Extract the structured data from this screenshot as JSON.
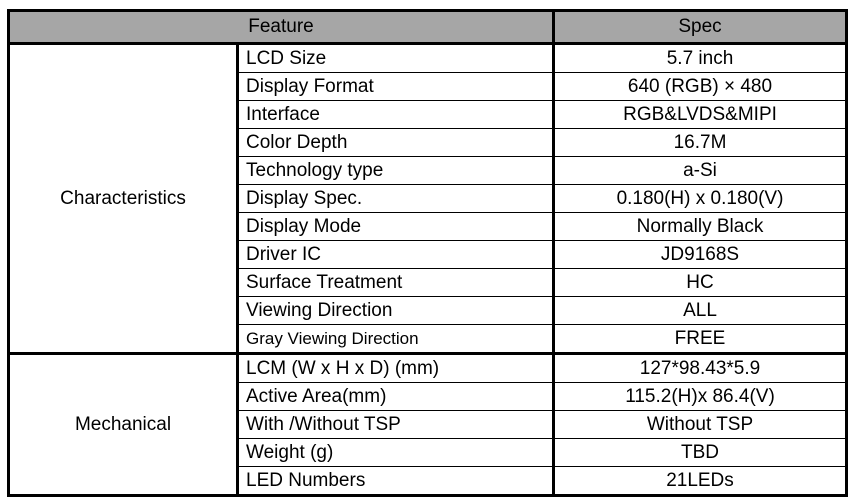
{
  "headers": {
    "feature": "Feature",
    "spec": "Spec"
  },
  "groups": [
    {
      "name": "Characteristics",
      "rows": [
        [
          "LCD Size",
          "5.7 inch"
        ],
        [
          "Display Format",
          "640 (RGB) × 480"
        ],
        [
          "Interface",
          "RGB&LVDS&MIPI"
        ],
        [
          "Color Depth",
          "16.7M"
        ],
        [
          "Technology type",
          "a-Si"
        ],
        [
          "Display Spec.",
          "0.180(H) x 0.180(V)"
        ],
        [
          "Display Mode",
          "Normally Black"
        ],
        [
          "Driver IC",
          "JD9168S"
        ],
        [
          "Surface Treatment",
          "HC"
        ],
        [
          "Viewing Direction",
          "ALL"
        ],
        [
          "Gray Viewing Direction",
          "FREE"
        ]
      ]
    },
    {
      "name": "Mechanical",
      "rows": [
        [
          "LCM (W x H x D) (mm)",
          "127*98.43*5.9"
        ],
        [
          "Active Area(mm)",
          "115.2(H)x 86.4(V)"
        ],
        [
          "With /Without TSP",
          "Without TSP"
        ],
        [
          "Weight (g)",
          "TBD"
        ],
        [
          "LED Numbers",
          "21LEDs"
        ]
      ]
    }
  ],
  "colors": {
    "header_bg": "#a6a6a6"
  }
}
